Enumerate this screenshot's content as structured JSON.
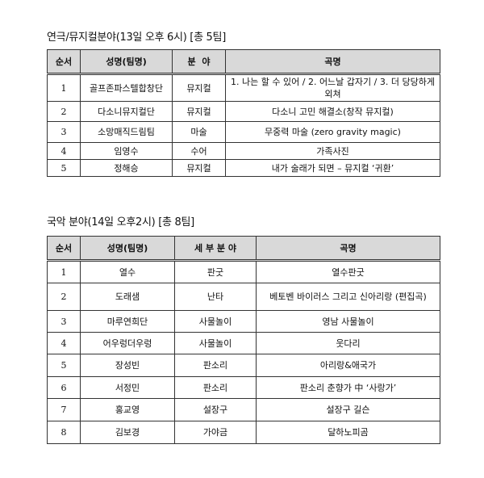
{
  "section1": {
    "title": "연극/뮤지컬분야(13일 오후 6시) [총 5팀]",
    "headers": [
      "순서",
      "성명(팀명)",
      "분  야",
      "곡명"
    ],
    "rows": [
      {
        "no": "1",
        "name": "골프존파스텔합창단",
        "field": "뮤지컬",
        "song": "1. 나는 할 수 있어 / 2. 어느날 갑자기 / 3. 더 당당하게 외쳐"
      },
      {
        "no": "2",
        "name": "다소니뮤지컬단",
        "field": "뮤지컬",
        "song": "다소니 고민 해결소(창작 뮤지컬)"
      },
      {
        "no": "3",
        "name": "소망매직드림팀",
        "field": "마술",
        "song": "무중력 마술 (zero gravity magic)"
      },
      {
        "no": "4",
        "name": "임영수",
        "field": "수어",
        "song": "가족사진"
      },
      {
        "no": "5",
        "name": "정해승",
        "field": "뮤지컬",
        "song": "내가 술래가 되면 – 뮤지컬 ‘귀환’"
      }
    ]
  },
  "section2": {
    "title": "국악 분야(14일 오후2시) [총 8팀]",
    "headers": [
      "순서",
      "성명(팀명)",
      "세 부 분 야",
      "곡명"
    ],
    "rows": [
      {
        "no": "1",
        "name": "열수",
        "field": "판굿",
        "song": "열수판굿"
      },
      {
        "no": "2",
        "name": "도래샘",
        "field": "난타",
        "song": "베토벤 바이러스 그리고 신아리랑 (편집곡)"
      },
      {
        "no": "3",
        "name": "마루연희단",
        "field": "사물놀이",
        "song": "영남 사물놀이"
      },
      {
        "no": "4",
        "name": "어우렁더우렁",
        "field": "사물놀이",
        "song": "웃다리"
      },
      {
        "no": "5",
        "name": "장성빈",
        "field": "판소리",
        "song": "아리랑&애국가"
      },
      {
        "no": "6",
        "name": "서정민",
        "field": "판소리",
        "song": "판소리 춘향가 中 ‘사랑가’"
      },
      {
        "no": "7",
        "name": "홍교영",
        "field": "설장구",
        "song": "설장구 길슨"
      },
      {
        "no": "8",
        "name": "김보경",
        "field": "가야금",
        "song": "달하노피곰"
      }
    ]
  }
}
